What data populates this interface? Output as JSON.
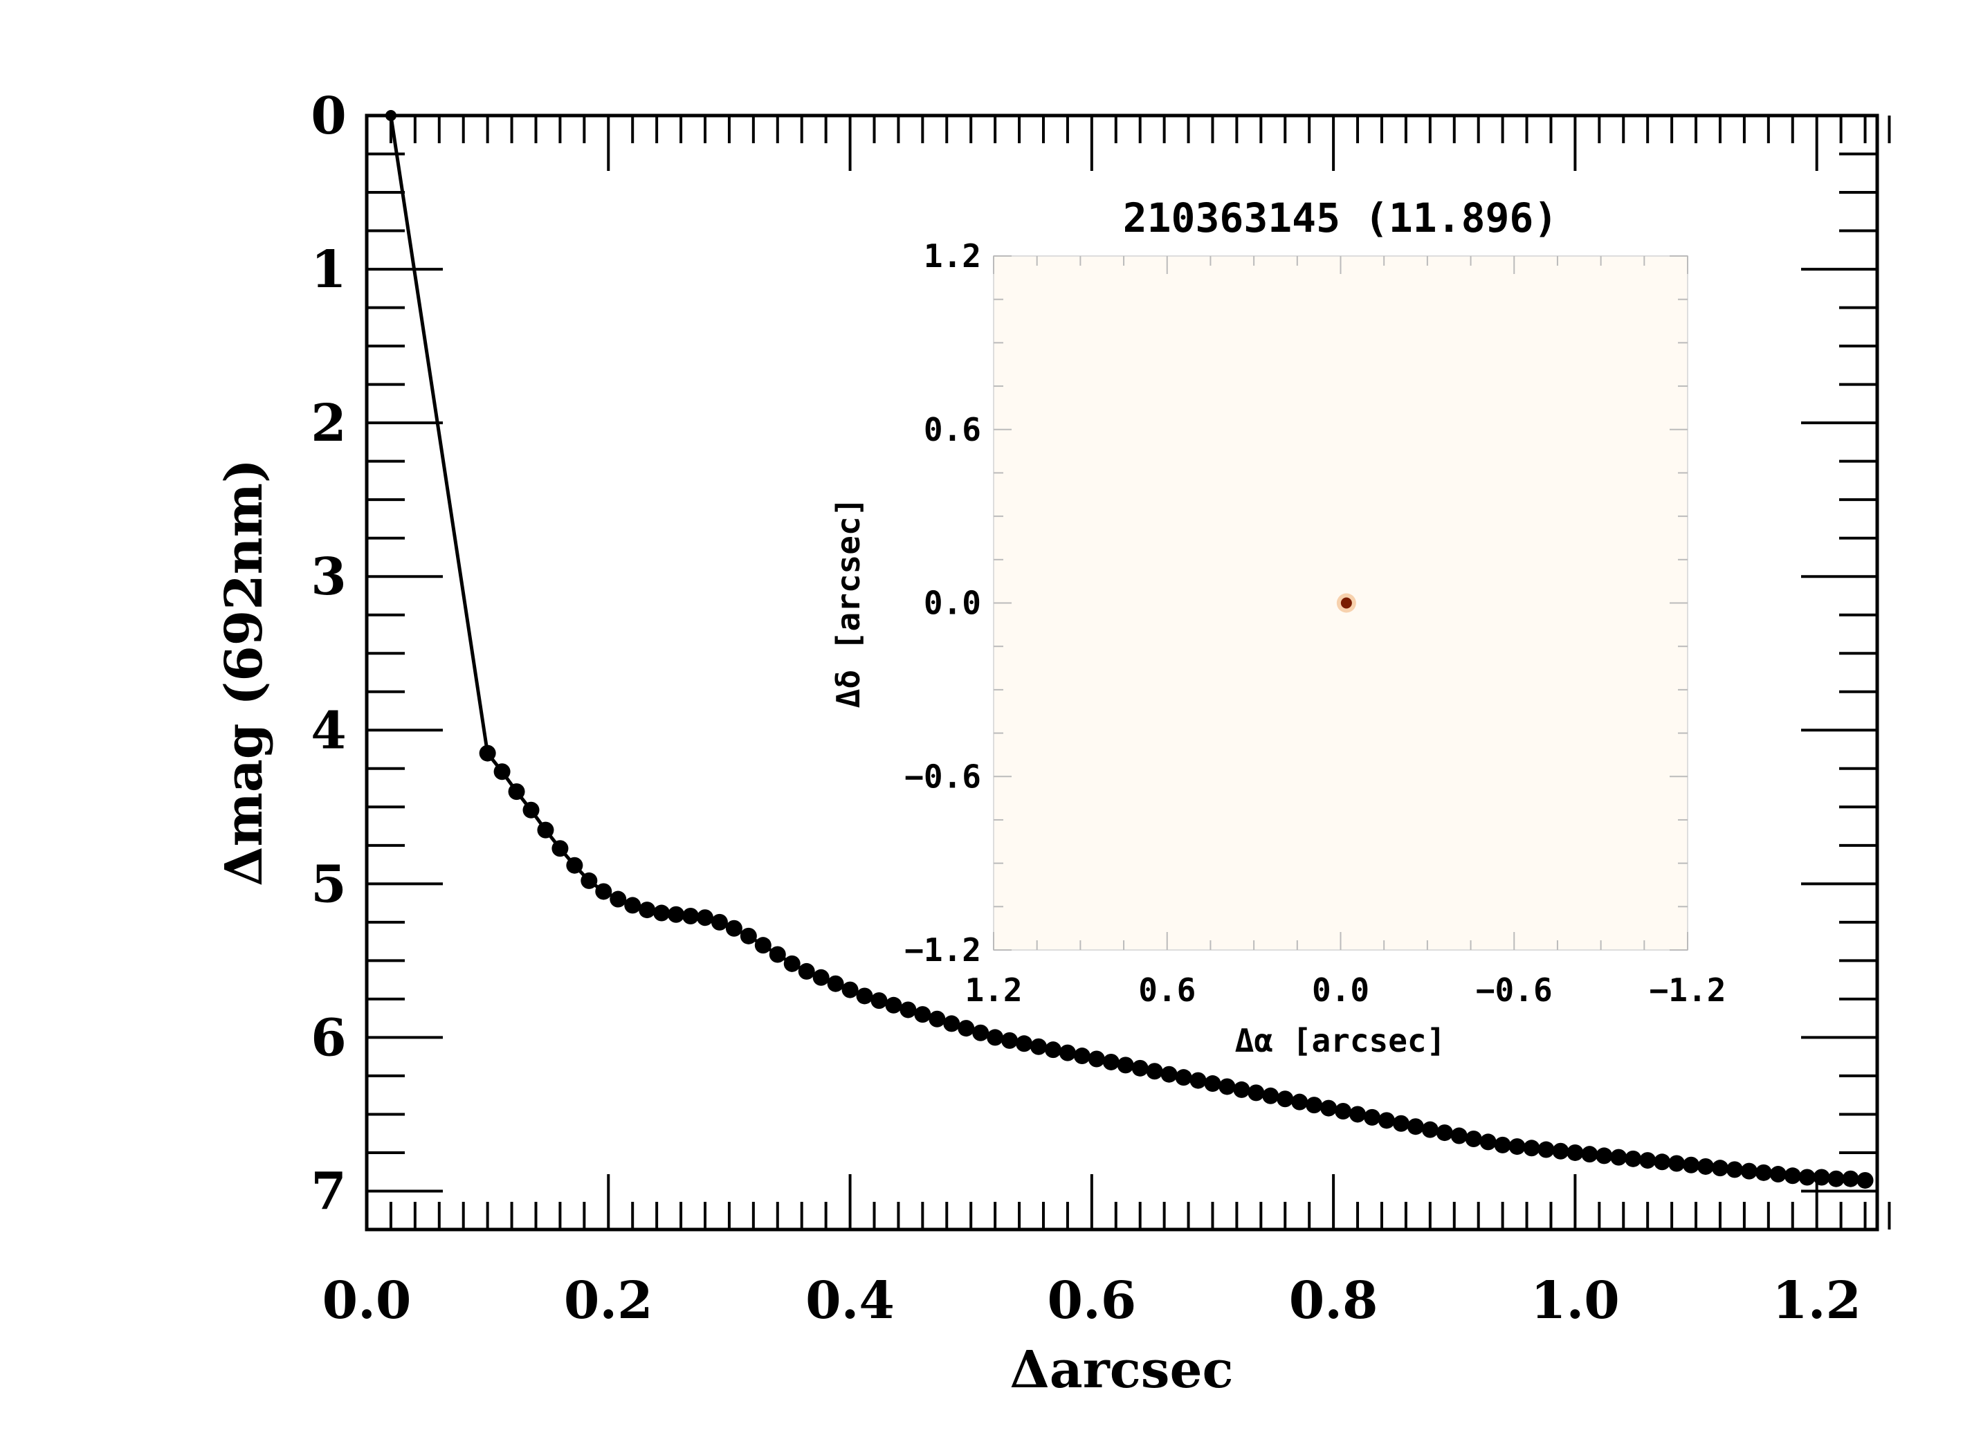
{
  "chart_data": {
    "type": "line",
    "marker": "filled-circle",
    "color": "#000000",
    "xlabel": "Δarcsec",
    "ylabel": "Δmag (692nm)",
    "xlim": [
      0.0,
      1.25
    ],
    "ylim": [
      7.25,
      0.0
    ],
    "y_inverted": true,
    "x_ticks": [
      "0.0",
      "0.2",
      "0.4",
      "0.6",
      "0.8",
      "1.0",
      "1.2"
    ],
    "x_tick_values": [
      0.0,
      0.2,
      0.4,
      0.6,
      0.8,
      1.0,
      1.2
    ],
    "y_ticks": [
      "0",
      "1",
      "2",
      "3",
      "4",
      "5",
      "6",
      "7"
    ],
    "y_tick_values": [
      0,
      1,
      2,
      3,
      4,
      5,
      6,
      7
    ],
    "first_point": [
      0.02,
      0.0
    ],
    "x": [
      0.1,
      0.112,
      0.124,
      0.136,
      0.148,
      0.16,
      0.172,
      0.184,
      0.196,
      0.208,
      0.22,
      0.232,
      0.244,
      0.256,
      0.268,
      0.28,
      0.292,
      0.304,
      0.316,
      0.328,
      0.34,
      0.352,
      0.364,
      0.376,
      0.388,
      0.4,
      0.412,
      0.424,
      0.436,
      0.448,
      0.46,
      0.472,
      0.484,
      0.496,
      0.508,
      0.52,
      0.532,
      0.544,
      0.556,
      0.568,
      0.58,
      0.592,
      0.604,
      0.616,
      0.628,
      0.64,
      0.652,
      0.664,
      0.676,
      0.688,
      0.7,
      0.712,
      0.724,
      0.736,
      0.748,
      0.76,
      0.772,
      0.784,
      0.796,
      0.808,
      0.82,
      0.832,
      0.844,
      0.856,
      0.868,
      0.88,
      0.892,
      0.904,
      0.916,
      0.928,
      0.94,
      0.952,
      0.964,
      0.976,
      0.988,
      1.0,
      1.012,
      1.024,
      1.036,
      1.048,
      1.06,
      1.072,
      1.084,
      1.096,
      1.108,
      1.12,
      1.132,
      1.144,
      1.156,
      1.168,
      1.18,
      1.192,
      1.204,
      1.216,
      1.228,
      1.24
    ],
    "y": [
      4.15,
      4.27,
      4.4,
      4.52,
      4.65,
      4.77,
      4.88,
      4.98,
      5.05,
      5.1,
      5.14,
      5.17,
      5.19,
      5.2,
      5.21,
      5.22,
      5.25,
      5.29,
      5.34,
      5.4,
      5.46,
      5.52,
      5.57,
      5.61,
      5.65,
      5.69,
      5.73,
      5.76,
      5.79,
      5.82,
      5.85,
      5.88,
      5.91,
      5.94,
      5.97,
      6.0,
      6.02,
      6.04,
      6.06,
      6.08,
      6.1,
      6.12,
      6.14,
      6.16,
      6.18,
      6.2,
      6.22,
      6.24,
      6.26,
      6.28,
      6.3,
      6.32,
      6.34,
      6.36,
      6.38,
      6.4,
      6.42,
      6.44,
      6.46,
      6.48,
      6.5,
      6.52,
      6.54,
      6.56,
      6.58,
      6.6,
      6.62,
      6.64,
      6.66,
      6.68,
      6.7,
      6.71,
      6.72,
      6.73,
      6.74,
      6.75,
      6.76,
      6.77,
      6.78,
      6.79,
      6.8,
      6.81,
      6.82,
      6.83,
      6.84,
      6.85,
      6.86,
      6.87,
      6.88,
      6.89,
      6.9,
      6.91,
      6.91,
      6.92,
      6.92,
      6.93
    ],
    "inset": {
      "title": "210363145 (11.896)",
      "xlabel": "Δα [arcsec]",
      "ylabel": "Δδ [arcsec]",
      "x_ticks": [
        "1.2",
        "0.6",
        "0.0",
        "−0.6",
        "−1.2"
      ],
      "x_tick_values": [
        1.2,
        0.6,
        0.0,
        -0.6,
        -1.2
      ],
      "y_ticks": [
        "1.2",
        "0.6",
        "0.0",
        "−0.6",
        "−1.2"
      ],
      "y_tick_values": [
        1.2,
        0.6,
        0.0,
        -0.6,
        -1.2
      ],
      "range": [
        1.2,
        -1.2
      ],
      "source_position": [
        -0.02,
        0.0
      ],
      "background_color": "#fffaf3",
      "source_color": "#7a1c00"
    }
  }
}
